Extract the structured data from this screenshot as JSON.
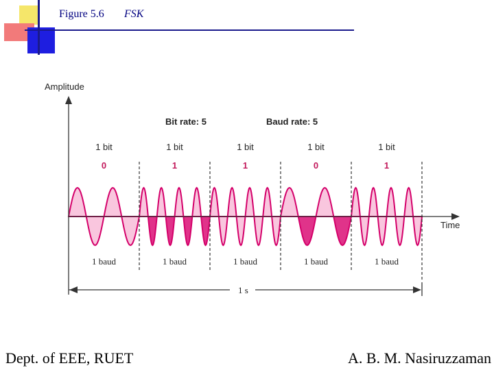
{
  "header": {
    "figure_number": "Figure 5.6",
    "figure_title": "FSK",
    "colors": {
      "yellow": "#f5e66a",
      "red": "#f27a7a",
      "blue": "#1e1ee0",
      "line": "#1a1a8c"
    }
  },
  "diagram": {
    "y_axis_label": "Amplitude",
    "x_axis_label": "Time",
    "bit_rate_label": "Bit rate: 5",
    "baud_rate_label": "Baud rate: 5",
    "duration_label": "1 s",
    "bits": [
      {
        "unit_label": "1 bit",
        "value": "0",
        "baud_label": "1 baud",
        "cycles": 2
      },
      {
        "unit_label": "1 bit",
        "value": "1",
        "baud_label": "1 baud",
        "cycles": 4
      },
      {
        "unit_label": "1 bit",
        "value": "1",
        "baud_label": "1 baud",
        "cycles": 4
      },
      {
        "unit_label": "1 bit",
        "value": "0",
        "baud_label": "1 baud",
        "cycles": 2
      },
      {
        "unit_label": "1 bit",
        "value": "1",
        "baud_label": "1 baud",
        "cycles": 4
      }
    ],
    "colors": {
      "wave": "#d4006a",
      "fill_light": "#f9c6de",
      "fill_dark": "#e0338a",
      "axis": "#333333"
    }
  },
  "footer": {
    "left": "Dept. of EEE, RUET",
    "right": "A. B. M. Nasiruzzaman"
  }
}
